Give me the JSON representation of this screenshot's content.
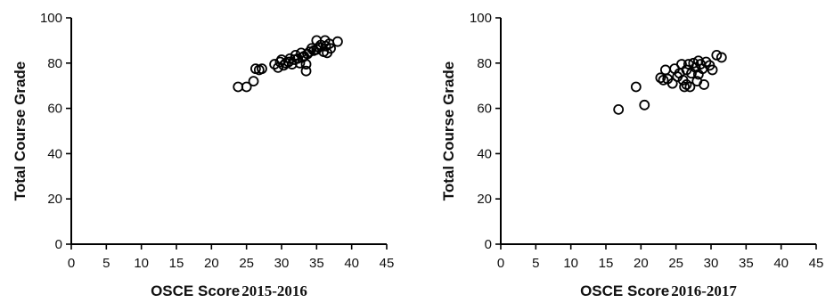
{
  "chart_data": [
    {
      "type": "scatter",
      "xlabel": "OSCE Score",
      "xlabel_suffix": "2015-2016",
      "ylabel": "Total Course Grade",
      "xlim": [
        0,
        45
      ],
      "ylim": [
        0,
        100
      ],
      "xticks": [
        "0",
        "5",
        "10",
        "15",
        "20",
        "25",
        "30",
        "35",
        "40",
        "45"
      ],
      "yticks": [
        "0",
        "20",
        "40",
        "60",
        "80",
        "100"
      ],
      "grid": false,
      "points": [
        [
          23.8,
          69.5
        ],
        [
          25.0,
          69.5
        ],
        [
          26.0,
          72.0
        ],
        [
          26.3,
          77.5
        ],
        [
          26.8,
          77.0
        ],
        [
          27.2,
          77.5
        ],
        [
          29.0,
          79.5
        ],
        [
          29.5,
          78.0
        ],
        [
          29.8,
          80.5
        ],
        [
          30.0,
          81.5
        ],
        [
          30.3,
          79.0
        ],
        [
          30.6,
          80.0
        ],
        [
          31.0,
          80.5
        ],
        [
          31.2,
          82.0
        ],
        [
          31.5,
          79.5
        ],
        [
          31.8,
          81.5
        ],
        [
          32.0,
          83.5
        ],
        [
          32.3,
          82.0
        ],
        [
          32.6,
          80.0
        ],
        [
          32.8,
          84.5
        ],
        [
          33.0,
          82.5
        ],
        [
          33.2,
          83.0
        ],
        [
          33.5,
          79.5
        ],
        [
          33.7,
          84.0
        ],
        [
          33.5,
          76.5
        ],
        [
          34.0,
          85.0
        ],
        [
          34.3,
          86.5
        ],
        [
          34.6,
          85.5
        ],
        [
          35.0,
          86.0
        ],
        [
          35.0,
          90.0
        ],
        [
          35.3,
          87.0
        ],
        [
          35.6,
          88.0
        ],
        [
          36.0,
          85.0
        ],
        [
          36.2,
          90.0
        ],
        [
          36.5,
          84.5
        ],
        [
          36.8,
          88.5
        ],
        [
          37.0,
          86.5
        ],
        [
          36.3,
          87.5
        ],
        [
          38.0,
          89.5
        ]
      ]
    },
    {
      "type": "scatter",
      "xlabel": "OSCE Score",
      "xlabel_suffix": "2016-2017",
      "ylabel": "Total Course Grade",
      "xlim": [
        0,
        45
      ],
      "ylim": [
        0,
        100
      ],
      "xticks": [
        "0",
        "5",
        "10",
        "15",
        "20",
        "25",
        "30",
        "35",
        "40",
        "45"
      ],
      "yticks": [
        "0",
        "20",
        "40",
        "60",
        "80",
        "100"
      ],
      "grid": false,
      "points": [
        [
          16.8,
          59.5
        ],
        [
          19.3,
          69.5
        ],
        [
          20.5,
          61.5
        ],
        [
          22.8,
          73.5
        ],
        [
          23.2,
          72.5
        ],
        [
          23.5,
          77.0
        ],
        [
          23.8,
          73.0
        ],
        [
          24.5,
          71.0
        ],
        [
          24.8,
          77.5
        ],
        [
          25.2,
          74.0
        ],
        [
          25.5,
          75.5
        ],
        [
          25.8,
          79.5
        ],
        [
          26.0,
          72.5
        ],
        [
          26.2,
          69.5
        ],
        [
          26.5,
          70.5
        ],
        [
          26.5,
          77.0
        ],
        [
          26.8,
          79.5
        ],
        [
          27.0,
          69.5
        ],
        [
          27.2,
          75.5
        ],
        [
          27.5,
          80.0
        ],
        [
          27.8,
          78.0
        ],
        [
          28.0,
          72.0
        ],
        [
          28.2,
          81.0
        ],
        [
          28.5,
          79.5
        ],
        [
          28.8,
          77.5
        ],
        [
          29.0,
          70.5
        ],
        [
          29.3,
          80.5
        ],
        [
          29.8,
          79.0
        ],
        [
          30.2,
          77.0
        ],
        [
          30.8,
          83.5
        ],
        [
          31.5,
          82.5
        ],
        [
          28.2,
          75.0
        ]
      ]
    }
  ]
}
